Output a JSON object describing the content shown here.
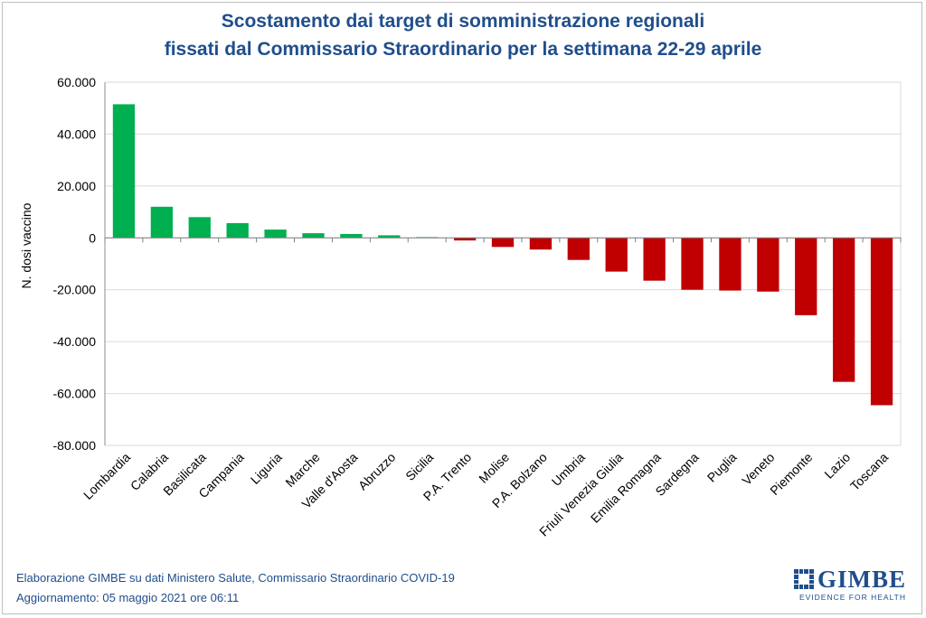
{
  "title_line1": "Scostamento dai target di somministrazione regionali",
  "title_line2": "fissati dal Commissario Straordinario per la settimana 22-29 aprile",
  "footer_line1": "Elaborazione GIMBE su dati Ministero Salute, Commissario Straordinario COVID-19",
  "footer_line2": "Aggiornamento: 05 maggio 2021 ore 06:11",
  "logo": {
    "name": "GIMBE",
    "tagline": "EVIDENCE FOR HEALTH"
  },
  "colors": {
    "positive": "#00b050",
    "negative": "#c00000",
    "title": "#1f4e8c",
    "grid": "#d9d9d9"
  },
  "chart_data": {
    "type": "bar",
    "title": "Scostamento dai target di somministrazione regionali fissati dal Commissario Straordinario per la settimana 22-29 aprile",
    "xlabel": "",
    "ylabel": "N. dosi vaccino",
    "ylim": [
      -80000,
      60000
    ],
    "yticks": [
      60000,
      40000,
      20000,
      0,
      -20000,
      -40000,
      -60000,
      -80000
    ],
    "ytick_labels": [
      "60.000",
      "40.000",
      "20.000",
      "0",
      "-20.000",
      "-40.000",
      "-60.000",
      "-80.000"
    ],
    "grid": true,
    "legend": "none",
    "categories": [
      "Lombardia",
      "Calabria",
      "Basilicata",
      "Campania",
      "Liguria",
      "Marche",
      "Valle d'Aosta",
      "Abruzzo",
      "Sicilia",
      "P.A. Trento",
      "Molise",
      "P.A. Bolzano",
      "Umbria",
      "Friuli Venezia Giulia",
      "Emilia Romagna",
      "Sardegna",
      "Puglia",
      "Veneto",
      "Piemonte",
      "Lazio",
      "Toscana"
    ],
    "values": [
      51500,
      12000,
      8000,
      5700,
      3200,
      1800,
      1500,
      1000,
      300,
      -1000,
      -3500,
      -4500,
      -8500,
      -13000,
      -16500,
      -20000,
      -20300,
      -20700,
      -29800,
      -55500,
      -64500
    ]
  }
}
